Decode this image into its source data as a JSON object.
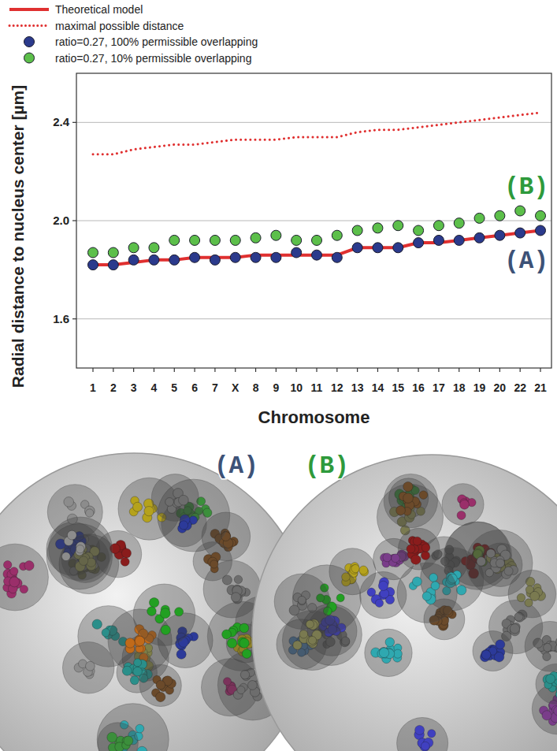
{
  "chart_data": {
    "type": "scatter",
    "x_label": "Chromosome",
    "y_label": "Radial distance to nucleus center [µm]",
    "categories": [
      "1",
      "2",
      "3",
      "4",
      "5",
      "6",
      "7",
      "X",
      "8",
      "9",
      "10",
      "11",
      "12",
      "13",
      "14",
      "15",
      "16",
      "17",
      "18",
      "19",
      "20",
      "22",
      "21"
    ],
    "ylim": [
      1.4,
      2.6
    ],
    "yticks": [
      1.6,
      2.0,
      2.4
    ],
    "grid": true,
    "legend": "top-left",
    "series": [
      {
        "name": "Theoretical model",
        "type": "line",
        "line_style": "solid",
        "color": "#e03030",
        "values": [
          1.82,
          1.82,
          1.83,
          1.84,
          1.84,
          1.85,
          1.85,
          1.85,
          1.86,
          1.86,
          1.86,
          1.86,
          1.86,
          1.89,
          1.89,
          1.89,
          1.91,
          1.91,
          1.92,
          1.93,
          1.94,
          1.95,
          1.96
        ]
      },
      {
        "name": "maximal possible distance",
        "type": "line",
        "line_style": "dotted",
        "color": "#e03030",
        "values": [
          2.27,
          2.27,
          2.29,
          2.3,
          2.31,
          2.31,
          2.32,
          2.33,
          2.33,
          2.33,
          2.34,
          2.34,
          2.34,
          2.36,
          2.37,
          2.37,
          2.38,
          2.39,
          2.4,
          2.41,
          2.42,
          2.43,
          2.44
        ]
      },
      {
        "name": "ratio=0.27, 100% permissible overlapping",
        "type": "scatter",
        "marker": "circle",
        "color": "#2b3a8c",
        "values": [
          1.82,
          1.82,
          1.84,
          1.84,
          1.84,
          1.85,
          1.84,
          1.85,
          1.85,
          1.85,
          1.87,
          1.86,
          1.85,
          1.89,
          1.89,
          1.89,
          1.91,
          1.92,
          1.92,
          1.93,
          1.94,
          1.95,
          1.96
        ],
        "errors": [
          0.01,
          0.01,
          0.01,
          0.01,
          0.01,
          0.01,
          0.01,
          0.01,
          0.01,
          0.01,
          0.01,
          0.01,
          0.01,
          0.01,
          0.01,
          0.01,
          0.01,
          0.01,
          0.01,
          0.01,
          0.01,
          0.01,
          0.01
        ]
      },
      {
        "name": "ratio=0.27, 10% permissible overlapping",
        "type": "scatter",
        "marker": "circle",
        "color": "#5cbf4a",
        "values": [
          1.87,
          1.87,
          1.89,
          1.89,
          1.92,
          1.92,
          1.92,
          1.92,
          1.93,
          1.94,
          1.92,
          1.92,
          1.94,
          1.96,
          1.97,
          1.98,
          1.96,
          1.98,
          1.99,
          2.01,
          2.02,
          2.04,
          2.02
        ],
        "errors": [
          0.01,
          0.01,
          0.01,
          0.01,
          0.01,
          0.01,
          0.01,
          0.01,
          0.01,
          0.01,
          0.01,
          0.01,
          0.01,
          0.01,
          0.01,
          0.01,
          0.01,
          0.01,
          0.01,
          0.01,
          0.01,
          0.01,
          0.01
        ]
      }
    ],
    "annotations": [
      {
        "text": "(A)",
        "color": "#3d5277"
      },
      {
        "text": "(B)",
        "color": "#2e9a3c"
      }
    ]
  },
  "panels": [
    {
      "label": "(A)",
      "color": "#3d5277"
    },
    {
      "label": "(B)",
      "color": "#2e9a3c"
    }
  ]
}
